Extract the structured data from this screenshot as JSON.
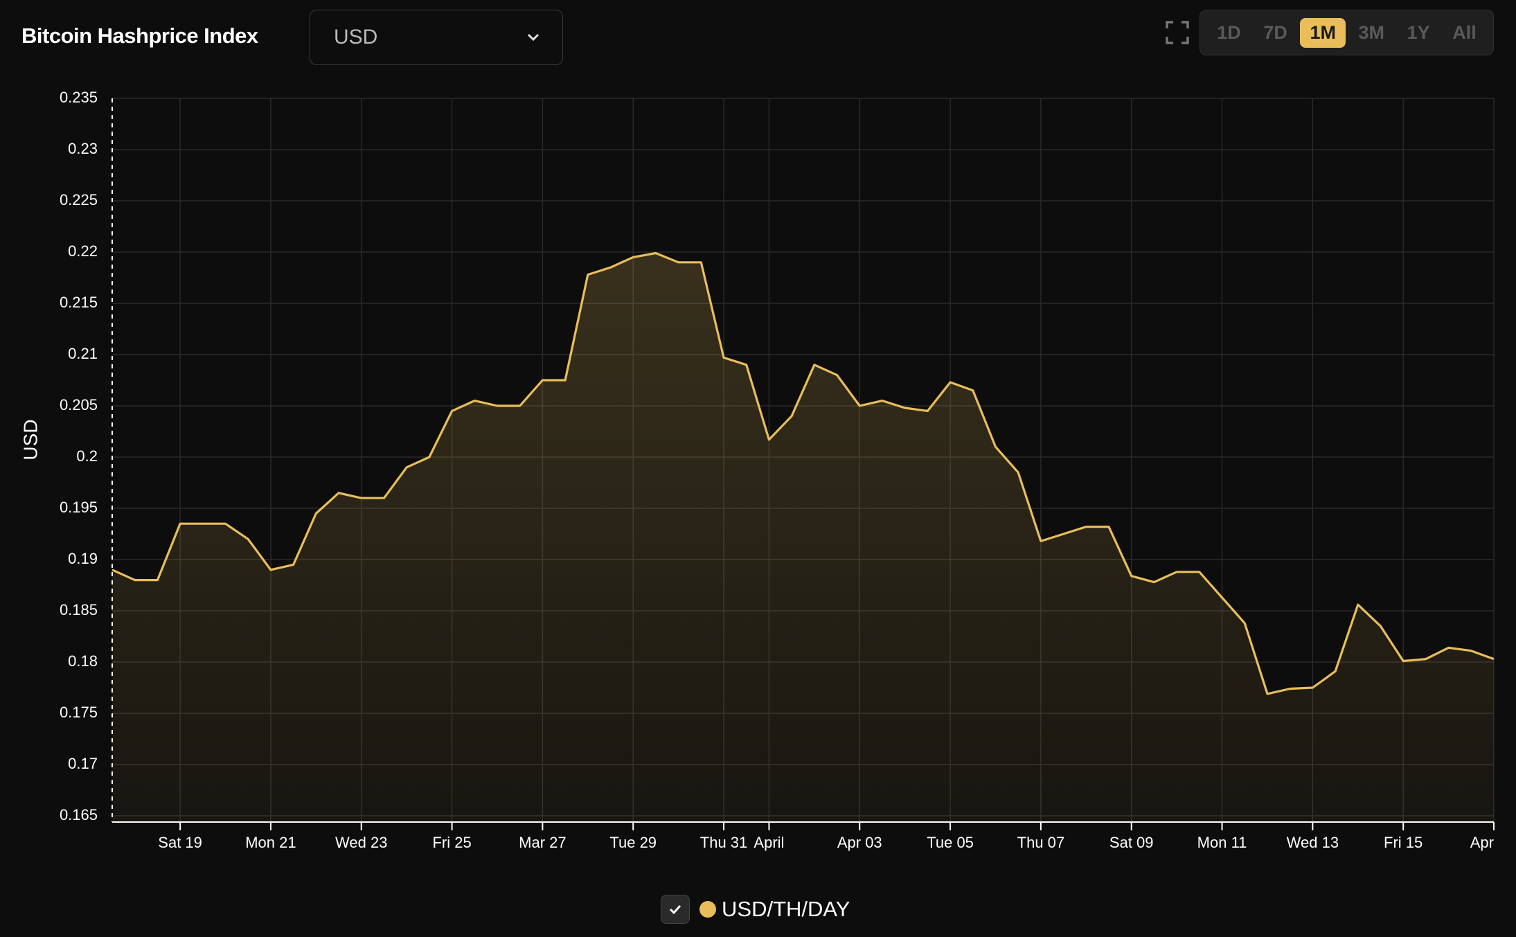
{
  "ui": {
    "title": "Bitcoin Hashprice Index",
    "currency": "USD",
    "ranges": [
      "1D",
      "7D",
      "1M",
      "3M",
      "1Y",
      "All"
    ],
    "active_range": 2
  },
  "chart_data": {
    "type": "area",
    "y_label": "USD",
    "categories": [
      null,
      null,
      null,
      "Sat 19",
      null,
      null,
      null,
      "Mon 21",
      null,
      null,
      null,
      "Wed 23",
      null,
      null,
      null,
      "Fri 25",
      null,
      null,
      null,
      "Mar 27",
      null,
      null,
      null,
      "Tue 29",
      null,
      null,
      null,
      "Thu 31",
      null,
      "April",
      null,
      null,
      null,
      "Apr 03",
      null,
      null,
      null,
      "Tue 05",
      null,
      null,
      null,
      "Thu 07",
      null,
      null,
      null,
      "Sat 09",
      null,
      null,
      null,
      "Mon 11",
      null,
      null,
      null,
      "Wed 13",
      null,
      null,
      null,
      "Fri 15",
      null,
      null,
      null,
      "Apr"
    ],
    "series": [
      {
        "name": "USD/TH/DAY",
        "color": "#e9be5a",
        "values": [
          0.189,
          0.188,
          0.188,
          0.1935,
          0.1935,
          0.1935,
          0.192,
          0.189,
          0.1895,
          0.1945,
          0.1965,
          0.196,
          0.196,
          0.199,
          0.2,
          0.2045,
          0.2055,
          0.205,
          0.205,
          0.2075,
          0.2075,
          0.2178,
          0.2185,
          0.2195,
          0.2199,
          0.219,
          0.219,
          0.2097,
          0.209,
          0.2017,
          0.204,
          0.209,
          0.208,
          0.205,
          0.2055,
          0.2048,
          0.2045,
          0.2073,
          0.2065,
          0.201,
          0.1985,
          0.1918,
          0.1925,
          0.1932,
          0.1932,
          0.1884,
          0.1878,
          0.1888,
          0.1888,
          0.1863,
          0.1838,
          0.1769,
          0.1774,
          0.1775,
          0.1791,
          0.1856,
          0.1835,
          0.1801,
          0.1803,
          0.1814,
          0.1811,
          0.1803
        ]
      }
    ],
    "ylim": [
      0.165,
      0.235
    ],
    "yticks": [
      0.165,
      0.17,
      0.175,
      0.18,
      0.185,
      0.19,
      0.195,
      0.2,
      0.205,
      0.21,
      0.215,
      0.22,
      0.225,
      0.23,
      0.235
    ],
    "grid": true
  }
}
